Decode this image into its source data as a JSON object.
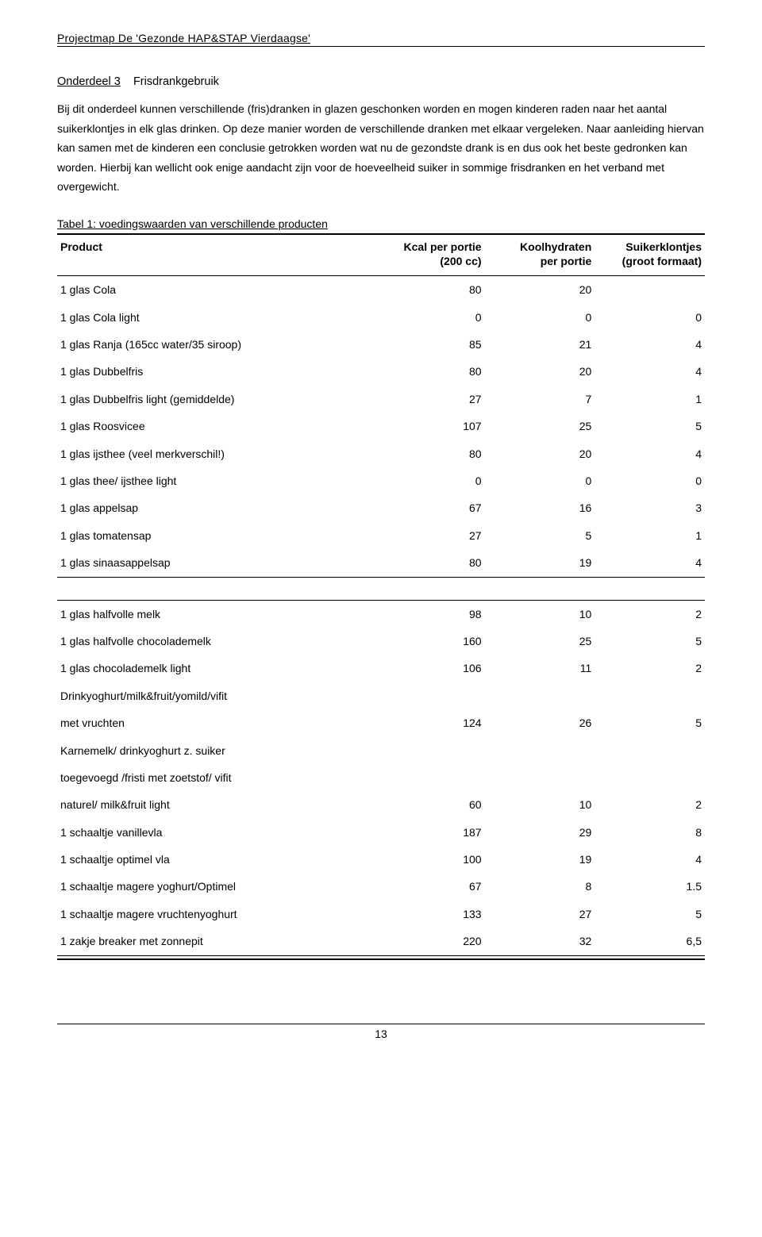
{
  "header": "Projectmap De 'Gezonde HAP&STAP Vierdaagse'",
  "section": {
    "label_underline": "Onderdeel 3",
    "label_rest": "Frisdrankgebruik"
  },
  "body": "Bij dit onderdeel kunnen verschillende (fris)dranken in glazen geschonken worden en mogen kinderen raden naar het aantal suikerklontjes in elk glas drinken. Op deze manier worden de verschillende dranken met elkaar vergeleken. Naar aanleiding hiervan kan samen met de kinderen een conclusie getrokken worden wat nu de gezondste drank is en dus ook het beste gedronken kan worden. Hierbij kan wellicht ook enige aandacht zijn voor de hoeveelheid suiker in sommige frisdranken en het verband met overgewicht.",
  "table": {
    "caption": "Tabel 1: voedingswaarden van verschillende producten",
    "columns": {
      "product": "Product",
      "kcal_l1": "Kcal per portie",
      "kcal_l2": "(200 cc)",
      "carb_l1": "Koolhydraten",
      "carb_l2": "per portie",
      "sugar_l1": "Suikerklontjes",
      "sugar_l2": "(groot formaat)"
    },
    "group1": [
      {
        "p": "1 glas Cola",
        "k": "80",
        "c": "20",
        "s": ""
      },
      {
        "p": "1 glas Cola light",
        "k": "0",
        "c": "0",
        "s": "0"
      },
      {
        "p": "1 glas Ranja (165cc water/35 siroop)",
        "k": "85",
        "c": "21",
        "s": "4"
      },
      {
        "p": "1 glas Dubbelfris",
        "k": "80",
        "c": "20",
        "s": "4"
      },
      {
        "p": "1 glas Dubbelfris light (gemiddelde)",
        "k": "27",
        "c": "7",
        "s": "1"
      },
      {
        "p": "1 glas Roosvicee",
        "k": "107",
        "c": "25",
        "s": "5"
      },
      {
        "p": "1 glas ijsthee (veel merkverschil!)",
        "k": "80",
        "c": "20",
        "s": "4"
      },
      {
        "p": "1 glas  thee/ ijsthee light",
        "k": "0",
        "c": "0",
        "s": "0"
      },
      {
        "p": "1 glas appelsap",
        "k": "67",
        "c": "16",
        "s": "3"
      },
      {
        "p": "1 glas tomatensap",
        "k": "27",
        "c": "5",
        "s": "1"
      },
      {
        "p": "1 glas sinaasappelsap",
        "k": "80",
        "c": "19",
        "s": "4"
      }
    ],
    "group2": [
      {
        "p": "1 glas halfvolle melk",
        "k": "98",
        "c": "10",
        "s": "2"
      },
      {
        "p": "1 glas halfvolle chocolademelk",
        "k": "160",
        "c": "25",
        "s": "5"
      },
      {
        "p": "1 glas chocolademelk light",
        "k": "106",
        "c": "11",
        "s": "2"
      },
      {
        "p": "Drinkyoghurt/milk&fruit/yomild/vifit",
        "k": "",
        "c": "",
        "s": ""
      },
      {
        "p": "met vruchten",
        "k": "124",
        "c": "26",
        "s": "5"
      },
      {
        "p": "Karnemelk/ drinkyoghurt z. suiker",
        "k": "",
        "c": "",
        "s": ""
      },
      {
        "p": "toegevoegd /fristi met zoetstof/ vifit",
        "k": "",
        "c": "",
        "s": ""
      },
      {
        "p": "naturel/ milk&fruit light",
        "k": "60",
        "c": "10",
        "s": "2"
      },
      {
        "p": "1 schaaltje vanillevla",
        "k": "187",
        "c": "29",
        "s": "8"
      },
      {
        "p": "1 schaaltje optimel vla",
        "k": "100",
        "c": "19",
        "s": "4"
      },
      {
        "p": "1 schaaltje magere yoghurt/Optimel",
        "k": "67",
        "c": "8",
        "s": "1.5"
      },
      {
        "p": "1 schaaltje magere vruchtenyoghurt",
        "k": "133",
        "c": "27",
        "s": "5"
      },
      {
        "p": "1 zakje breaker met zonnepit",
        "k": "220",
        "c": "32",
        "s": "6,5"
      }
    ]
  },
  "page_number": "13"
}
